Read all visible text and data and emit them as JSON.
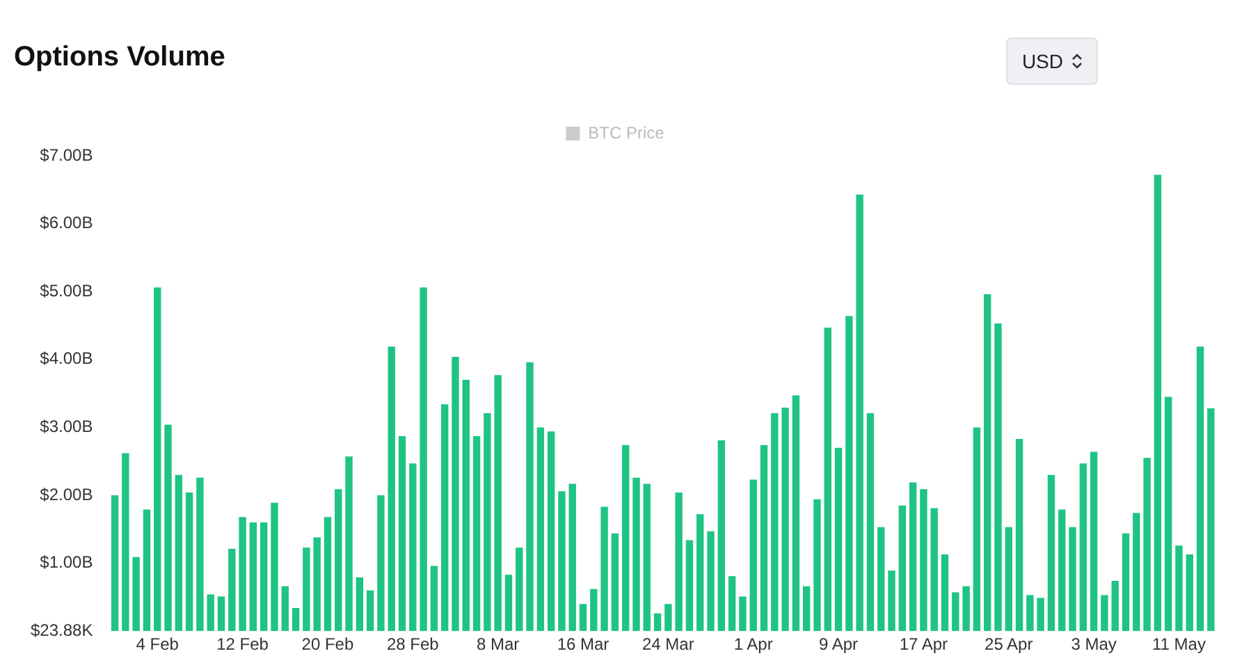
{
  "chart_data": {
    "type": "bar",
    "title": "Options Volume",
    "annotations": [
      "USD"
    ],
    "categories": [
      null,
      null,
      null,
      null,
      "4 Feb",
      null,
      null,
      null,
      null,
      null,
      null,
      null,
      "12 Feb",
      null,
      null,
      null,
      null,
      null,
      null,
      null,
      "20 Feb",
      null,
      null,
      null,
      null,
      null,
      null,
      null,
      "28 Feb",
      null,
      null,
      null,
      null,
      null,
      null,
      null,
      "8 Mar",
      null,
      null,
      null,
      null,
      null,
      null,
      null,
      "16 Mar",
      null,
      null,
      null,
      null,
      null,
      null,
      null,
      "24 Mar",
      null,
      null,
      null,
      null,
      null,
      null,
      null,
      "1 Apr",
      null,
      null,
      null,
      null,
      null,
      null,
      null,
      "9 Apr",
      null,
      null,
      null,
      null,
      null,
      null,
      null,
      "17 Apr",
      null,
      null,
      null,
      null,
      null,
      null,
      null,
      "25 Apr",
      null,
      null,
      null,
      null,
      null,
      null,
      null,
      "3 May",
      null,
      null,
      null,
      null,
      null,
      null,
      null,
      "11 May",
      null,
      null,
      null
    ],
    "series": [
      {
        "name": "BTC Price",
        "color": "#cccccc",
        "values": [
          null,
          null,
          null,
          null,
          null,
          null,
          null,
          null,
          null,
          null,
          null,
          null,
          null,
          null,
          null,
          null,
          null,
          null,
          null,
          null,
          null,
          null,
          null,
          null,
          null,
          null,
          null,
          null,
          null,
          null,
          null,
          null,
          null,
          null,
          null,
          null,
          null,
          null,
          null,
          null,
          null,
          null,
          null,
          null,
          null,
          null,
          null,
          null,
          null,
          null,
          null,
          null,
          null,
          null,
          null,
          null,
          null,
          null,
          null,
          null,
          null,
          null,
          null,
          null,
          null,
          null,
          null,
          null,
          null,
          null,
          null,
          null,
          null,
          null,
          null,
          null,
          null,
          null,
          null,
          null,
          null,
          null,
          null,
          null,
          null,
          null,
          null,
          null,
          null,
          null,
          null,
          null,
          null,
          null,
          null,
          null,
          null,
          null,
          null,
          null,
          null,
          null,
          null,
          null
        ]
      },
      {
        "color": "#1fc485",
        "values": [
          2000000000.0,
          2620000000.0,
          1090000000.0,
          1790000000.0,
          5060000000.0,
          3040000000.0,
          2300000000.0,
          2040000000.0,
          2260000000.0,
          540000000.0,
          510000000.0,
          1210000000.0,
          1680000000.0,
          1600000000.0,
          1600000000.0,
          1890000000.0,
          660000000.0,
          340000000.0,
          1230000000.0,
          1380000000.0,
          1680000000.0,
          2090000000.0,
          2570000000.0,
          790000000.0,
          600000000.0,
          2000000000.0,
          4190000000.0,
          2870000000.0,
          2470000000.0,
          5060000000.0,
          960000000.0,
          3340000000.0,
          4040000000.0,
          3700000000.0,
          2870000000.0,
          3210000000.0,
          3770000000.0,
          830000000.0,
          1230000000.0,
          3960000000.0,
          3000000000.0,
          2940000000.0,
          2060000000.0,
          2170000000.0,
          400000000.0,
          620000000.0,
          1830000000.0,
          1440000000.0,
          2740000000.0,
          2260000000.0,
          2170000000.0,
          260000000.0,
          400000000.0,
          2040000000.0,
          1340000000.0,
          1720000000.0,
          1470000000.0,
          2810000000.0,
          810000000.0,
          510000000.0,
          2230000000.0,
          2740000000.0,
          3210000000.0,
          3290000000.0,
          3470000000.0,
          660000000.0,
          1940000000.0,
          4470000000.0,
          2700000000.0,
          4640000000.0,
          6430000000.0,
          3210000000.0,
          1530000000.0,
          890000000.0,
          1850000000.0,
          2190000000.0,
          2090000000.0,
          1810000000.0,
          1130000000.0,
          570000000.0,
          660000000.0,
          3000000000.0,
          4960000000.0,
          4530000000.0,
          1530000000.0,
          2830000000.0,
          530000000.0,
          490000000.0,
          2300000000.0,
          1790000000.0,
          1530000000.0,
          2470000000.0,
          2640000000.0,
          530000000.0,
          740000000.0,
          1440000000.0,
          1740000000.0,
          2550000000.0,
          6720000000.0,
          3450000000.0,
          1260000000.0,
          1130000000.0,
          4190000000.0,
          3280000000.0
        ]
      }
    ],
    "ylim": [
      23880,
      7000000000
    ],
    "yticks": [
      {
        "value": 23880,
        "label": "$23.88K"
      },
      {
        "value": 1000000000,
        "label": "$1.00B"
      },
      {
        "value": 2000000000,
        "label": "$2.00B"
      },
      {
        "value": 3000000000,
        "label": "$3.00B"
      },
      {
        "value": 4000000000,
        "label": "$4.00B"
      },
      {
        "value": 5000000000,
        "label": "$5.00B"
      },
      {
        "value": 6000000000,
        "label": "$6.00B"
      },
      {
        "value": 7000000000,
        "label": "$7.00B"
      }
    ],
    "grid": false,
    "legend": "top"
  }
}
